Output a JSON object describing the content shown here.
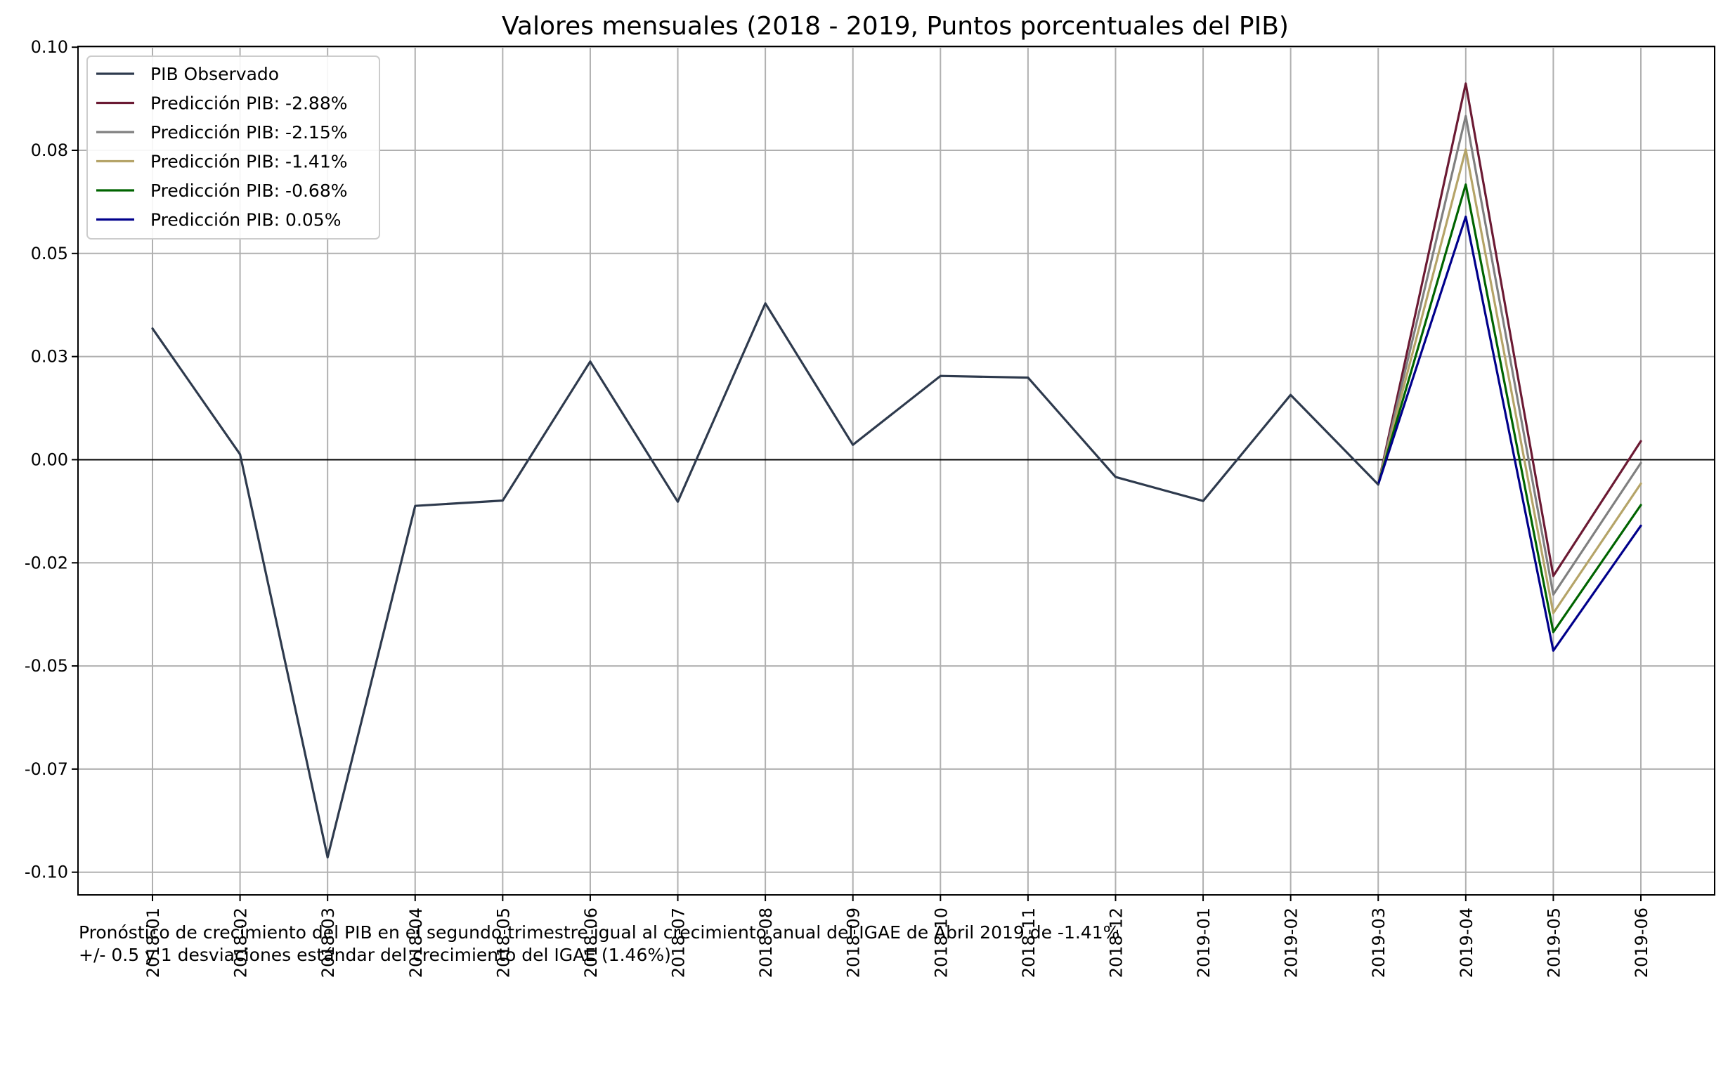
{
  "chart_data": {
    "type": "line",
    "title": "Valores mensuales (2018 - 2019, Puntos porcentuales del PIB)",
    "xlabel": "",
    "ylabel": "",
    "x": [
      "2018-01",
      "2018-02",
      "2018-03",
      "2018-04",
      "2018-05",
      "2018-06",
      "2018-07",
      "2018-08",
      "2018-09",
      "2018-10",
      "2018-11",
      "2018-12",
      "2019-01",
      "2019-02",
      "2019-03",
      "2019-04",
      "2019-05",
      "2019-06"
    ],
    "ylim": [
      -0.1055,
      0.1002
    ],
    "yticks": [
      {
        "value": 0.1,
        "label": "0.10"
      },
      {
        "value": 0.075,
        "label": "0.08"
      },
      {
        "value": 0.05,
        "label": "0.05"
      },
      {
        "value": 0.025,
        "label": "0.03"
      },
      {
        "value": 0.0,
        "label": "0.00"
      },
      {
        "value": -0.025,
        "label": "-0.02"
      },
      {
        "value": -0.05,
        "label": "-0.05"
      },
      {
        "value": -0.075,
        "label": "-0.07"
      },
      {
        "value": -0.1,
        "label": "-0.10"
      }
    ],
    "grid": true,
    "zero_line": true,
    "legend_position": "top-left",
    "series": [
      {
        "name": "PIB Observado",
        "color": "#2e3a4d",
        "values": [
          0.0318,
          0.0013,
          -0.0964,
          -0.0112,
          -0.0099,
          0.0238,
          -0.0102,
          0.0379,
          0.0036,
          0.0203,
          0.0199,
          -0.0042,
          -0.01,
          0.0157,
          -0.006,
          null,
          null,
          null
        ]
      },
      {
        "name": "Predicción PIB: -2.88%",
        "color": "#6b1a33",
        "values": [
          null,
          null,
          null,
          null,
          null,
          null,
          null,
          null,
          null,
          null,
          null,
          null,
          null,
          null,
          -0.006,
          0.0912,
          -0.0282,
          0.0045
        ]
      },
      {
        "name": "Predicción PIB: -2.15%",
        "color": "#808080",
        "values": [
          null,
          null,
          null,
          null,
          null,
          null,
          null,
          null,
          null,
          null,
          null,
          null,
          null,
          null,
          -0.006,
          0.0833,
          -0.0327,
          -0.0008
        ]
      },
      {
        "name": "Predicción PIB: -1.41%",
        "color": "#b5a468",
        "values": [
          null,
          null,
          null,
          null,
          null,
          null,
          null,
          null,
          null,
          null,
          null,
          null,
          null,
          null,
          -0.006,
          0.0752,
          -0.0372,
          -0.0058
        ]
      },
      {
        "name": "Predicción PIB: -0.68%",
        "color": "#006400",
        "values": [
          null,
          null,
          null,
          null,
          null,
          null,
          null,
          null,
          null,
          null,
          null,
          null,
          null,
          null,
          -0.006,
          0.0667,
          -0.0418,
          -0.011
        ]
      },
      {
        "name": "Predicción PIB: 0.05%",
        "color": "#00008b",
        "values": [
          null,
          null,
          null,
          null,
          null,
          null,
          null,
          null,
          null,
          null,
          null,
          null,
          null,
          null,
          -0.006,
          0.0589,
          -0.0463,
          -0.016
        ]
      }
    ]
  },
  "footnote": {
    "line1": "Pronóstico de crecimiento del PIB en el segundo trimestre igual al crecimiento anual del IGAE de Abril 2019 de -1.41%",
    "line2": "+/- 0.5 y 1 desviaciones estándar del crecimiento del IGAE (1.46%)"
  }
}
